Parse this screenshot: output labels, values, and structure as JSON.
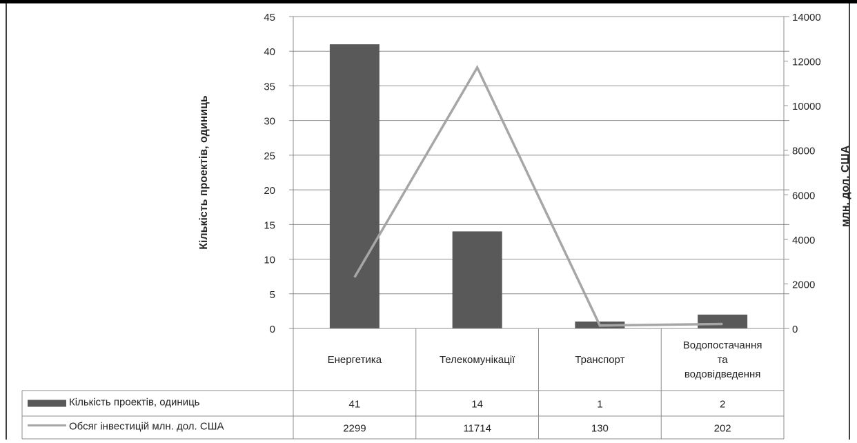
{
  "chart_data": {
    "type": "bar",
    "categories": [
      "Енергетика",
      "Телекомунікації",
      "Транспорт",
      "Водопостачання та водовідведення"
    ],
    "category_lines": [
      [
        "Енергетика"
      ],
      [
        "Телекомунікації"
      ],
      [
        "Транспорт"
      ],
      [
        "Водопостачання",
        "та",
        "водовідведення"
      ]
    ],
    "series": [
      {
        "name": "Кількість проектів, одиниць",
        "kind": "bar",
        "axis": "left",
        "color": "#595959",
        "values": [
          41,
          14,
          1,
          2
        ],
        "table_labels": [
          "41",
          "14",
          "1",
          "2"
        ]
      },
      {
        "name": "Обсяг інвестицій млн. дол. США",
        "kind": "line",
        "axis": "right",
        "color": "#a6a6a6",
        "values": [
          2299,
          11714,
          130,
          202
        ],
        "table_labels": [
          "2299",
          "11714",
          "130",
          "202"
        ]
      }
    ],
    "ylabel": "Кількість проектів, одиниць",
    "y2label": "млн. дол. США",
    "ylim": [
      0,
      45
    ],
    "y2lim": [
      0,
      14000
    ],
    "yticks": [
      "0",
      "5",
      "10",
      "15",
      "20",
      "25",
      "30",
      "35",
      "40",
      "45"
    ],
    "y2ticks": [
      "0",
      "2000",
      "4000",
      "6000",
      "8000",
      "10000",
      "12000",
      "14000"
    ],
    "grid": true,
    "legend": "data-table"
  }
}
